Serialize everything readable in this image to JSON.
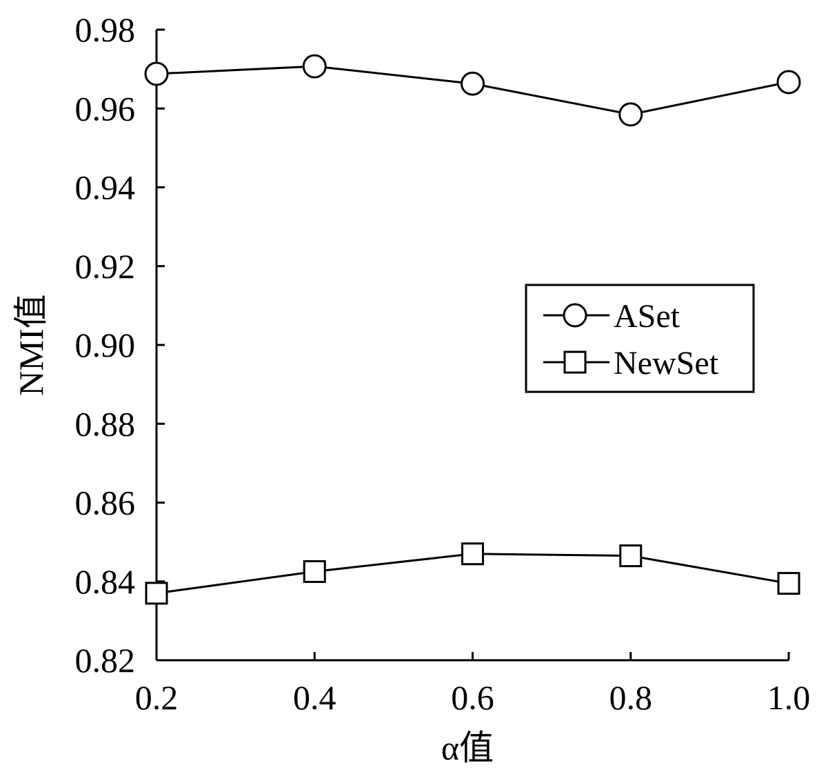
{
  "chart_data": {
    "type": "line",
    "xlabel": "α值",
    "ylabel": "NMI值",
    "x": [
      0.2,
      0.4,
      0.6,
      0.8,
      1.0
    ],
    "x_tick_labels": [
      "0.2",
      "0.4",
      "0.6",
      "0.8",
      "1.0"
    ],
    "y_tick_labels": [
      "0.82",
      "0.84",
      "0.86",
      "0.88",
      "0.90",
      "0.92",
      "0.94",
      "0.96",
      "0.98"
    ],
    "xlim": [
      0.2,
      1.0
    ],
    "ylim": [
      0.82,
      0.98
    ],
    "grid": false,
    "legend_position": "right",
    "series": [
      {
        "name": "ASet",
        "marker": "circle",
        "values": [
          0.9688,
          0.9707,
          0.9663,
          0.9585,
          0.9667
        ]
      },
      {
        "name": "NewSet",
        "marker": "square",
        "values": [
          0.837,
          0.8425,
          0.847,
          0.8465,
          0.8395
        ]
      }
    ]
  }
}
